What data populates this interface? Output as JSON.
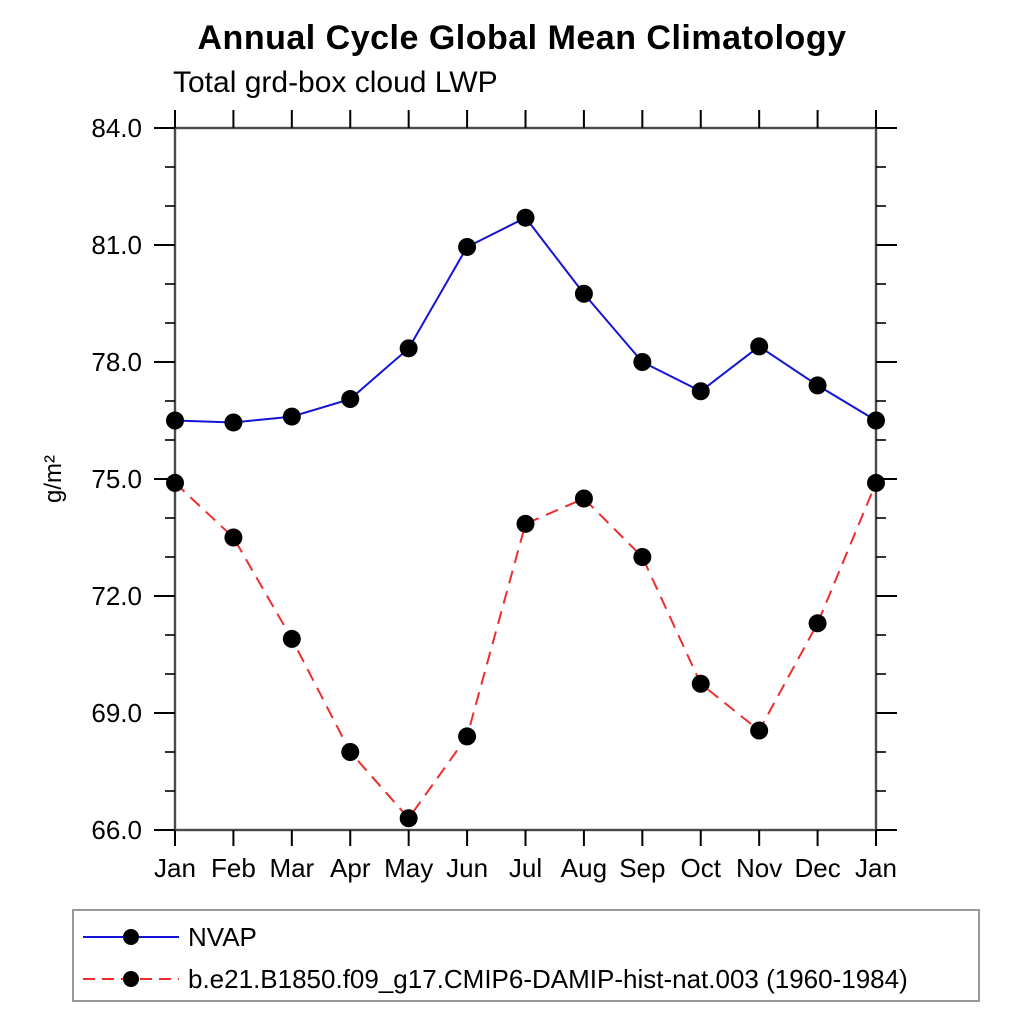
{
  "title": "Annual Cycle Global Mean Climatology",
  "subtitle": "Total grd-box cloud LWP",
  "y_axis_label": "g/m²",
  "chart_data": {
    "type": "line",
    "categories": [
      "Jan",
      "Feb",
      "Mar",
      "Apr",
      "May",
      "Jun",
      "Jul",
      "Aug",
      "Sep",
      "Oct",
      "Nov",
      "Dec",
      "Jan"
    ],
    "series": [
      {
        "name": "NVAP",
        "color": "#1414d6",
        "line_style": "solid",
        "marker": "filled-circle",
        "marker_color": "#000000",
        "values": [
          76.5,
          76.45,
          76.6,
          77.05,
          78.35,
          80.95,
          81.7,
          79.75,
          78.0,
          77.25,
          78.4,
          77.4,
          76.5
        ]
      },
      {
        "name": "b.e21.B1850.f09_g17.CMIP6-DAMIP-hist-nat.003 (1960-1984)",
        "color": "#ee2e2e",
        "line_style": "dashed",
        "marker": "filled-circle",
        "marker_color": "#000000",
        "values": [
          74.9,
          73.5,
          70.9,
          68.0,
          66.3,
          68.4,
          73.85,
          74.5,
          73.0,
          69.75,
          68.55,
          71.3,
          74.9
        ]
      }
    ],
    "title": "Annual Cycle Global Mean Climatology",
    "subtitle": "Total grd-box cloud LWP",
    "xlabel": "",
    "ylabel": "g/m²",
    "ylim": [
      66.0,
      84.0
    ],
    "yticks_major": [
      84.0,
      81.0,
      78.0,
      75.0,
      72.0,
      69.0,
      66.0
    ],
    "ytick_minor_step": 1.0,
    "ytick_label_decimals": 1,
    "grid": false,
    "legend_position": "bottom",
    "axis_color": "#4a4a4a",
    "tick_color": "#000000"
  }
}
